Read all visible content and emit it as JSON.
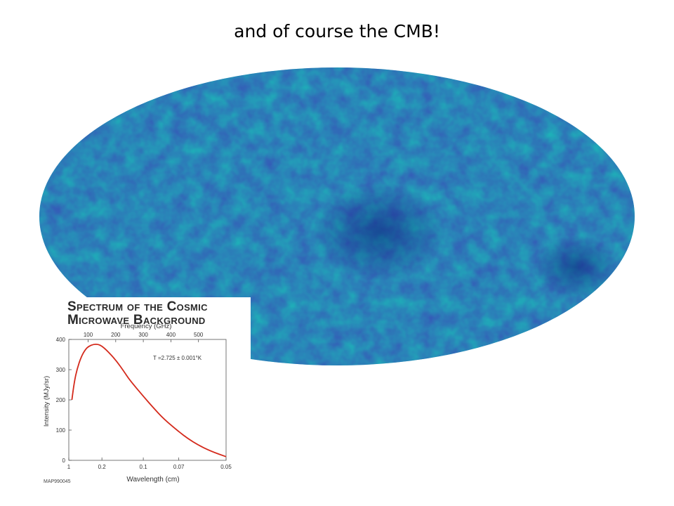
{
  "slide": {
    "title": "and of course the CMB!"
  },
  "colors": {
    "cmb_palette": [
      "#0a1a7a",
      "#1a3fb8",
      "#1e90d0",
      "#19c0b0",
      "#3cc84a",
      "#7ed03a",
      "#e6e24a",
      "#f0a030",
      "#d8241c"
    ],
    "spectrum_curve": "#d42a1c"
  },
  "inset": {
    "title_line1": "Spectrum of the Cosmic",
    "title_line2": "Microwave Background",
    "annotation": "T =2.725 ± 0.001°K",
    "ref_code": "MAP990045"
  },
  "chart_data": {
    "type": "line",
    "title": "Spectrum of the Cosmic Microwave Background",
    "xlabel": "Wavelength (cm)",
    "ylabel": "Intensity (MJy/sr)",
    "x2label": "Frequency (GHz)",
    "x_scale": "reciprocal",
    "xlim": [
      1,
      0.05
    ],
    "ylim": [
      0,
      400
    ],
    "x_ticks": [
      1,
      0.2,
      0.1,
      0.07,
      0.05
    ],
    "x_tick_labels": [
      "1",
      "0.2",
      "0.1",
      "0.07",
      "0.05"
    ],
    "y_ticks": [
      0,
      100,
      200,
      300,
      400
    ],
    "y_tick_labels": [
      "0",
      "100",
      "200",
      "300",
      "400"
    ],
    "x2_ticks": [
      100,
      200,
      300,
      400,
      500
    ],
    "x2_tick_labels": [
      "100",
      "200",
      "300",
      "400",
      "500"
    ],
    "grid": false,
    "series": [
      {
        "x": [
          0.73,
          0.6,
          0.5,
          0.4,
          0.33,
          0.29,
          0.25,
          0.22,
          0.2,
          0.18,
          0.15,
          0.13,
          0.12,
          0.1,
          0.09,
          0.08,
          0.07,
          0.065,
          0.06,
          0.055,
          0.05
        ],
        "y": [
          200,
          260,
          302,
          343,
          368,
          378,
          384,
          384,
          378,
          365,
          332,
          293,
          266,
          212,
          177,
          136,
          95,
          72,
          50,
          30,
          12
        ]
      }
    ]
  }
}
